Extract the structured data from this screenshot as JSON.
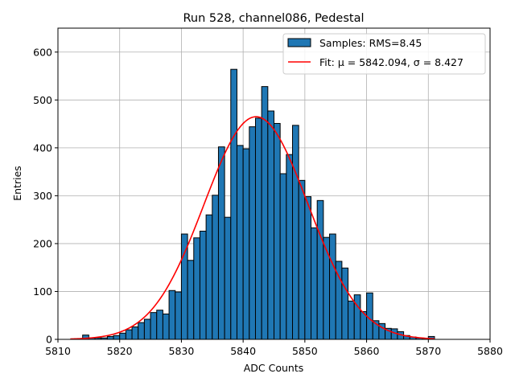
{
  "chart_data": {
    "type": "bar",
    "title": "Run 528, channel086, Pedestal",
    "xlabel": "ADC Counts",
    "ylabel": "Entries",
    "xlim": [
      5810,
      5880
    ],
    "ylim": [
      0,
      650
    ],
    "xticks": [
      5810,
      5820,
      5830,
      5840,
      5850,
      5860,
      5870,
      5880
    ],
    "yticks": [
      0,
      100,
      200,
      300,
      400,
      500,
      600
    ],
    "grid": true,
    "legend_position": "top-right",
    "colors": {
      "bars": "#1f77b4",
      "bar_edge": "#000000",
      "fit": "#ff0000",
      "grid": "#b0b0b0"
    },
    "series": [
      {
        "name": "Samples: RMS=8.45",
        "kind": "histogram",
        "bin_edges": [
          5812,
          5813,
          5814,
          5815,
          5816,
          5817,
          5818,
          5819,
          5820,
          5821,
          5822,
          5823,
          5824,
          5825,
          5826,
          5827,
          5828,
          5829,
          5830,
          5831,
          5832,
          5833,
          5834,
          5835,
          5836,
          5837,
          5838,
          5839,
          5840,
          5841,
          5842,
          5843,
          5844,
          5845,
          5846,
          5847,
          5848,
          5849,
          5850,
          5851,
          5852,
          5853,
          5854,
          5855,
          5856,
          5857,
          5858,
          5859,
          5860,
          5861,
          5862,
          5863,
          5864,
          5865,
          5866,
          5867,
          5868,
          5869,
          5870,
          5871
        ],
        "values": [
          0,
          0,
          9,
          3,
          3,
          3,
          6,
          8,
          13,
          20,
          26,
          35,
          42,
          56,
          61,
          53,
          102,
          99,
          220,
          165,
          212,
          226,
          260,
          301,
          402,
          255,
          564,
          405,
          398,
          444,
          462,
          528,
          477,
          451,
          346,
          386,
          447,
          332,
          298,
          233,
          290,
          213,
          220,
          163,
          149,
          80,
          93,
          58,
          97,
          39,
          33,
          23,
          22,
          16,
          8,
          5,
          3,
          2,
          6
        ]
      },
      {
        "name": "Fit: μ = 5842.094, σ = 8.427",
        "kind": "gaussian",
        "mu": 5842.094,
        "sigma": 8.427,
        "amplitude": 465,
        "x_range": [
          5812,
          5871
        ]
      }
    ]
  }
}
